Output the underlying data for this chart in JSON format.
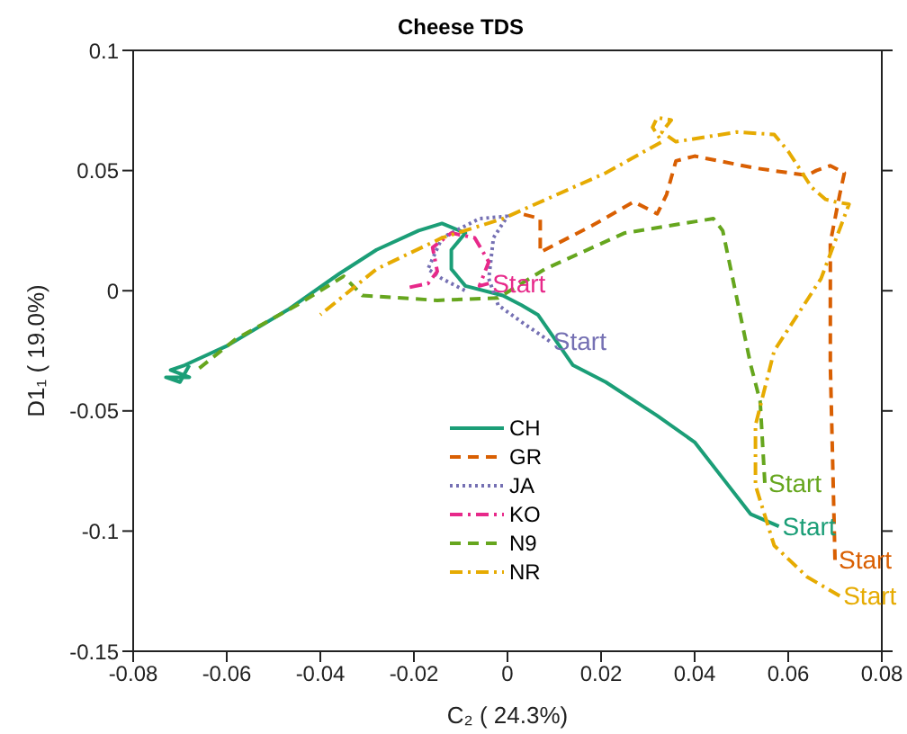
{
  "chart_data": {
    "type": "line",
    "title": "Cheese TDS",
    "xlabel": "C₂ ( 24.3%)",
    "ylabel": "D1₁ ( 19.0%)",
    "xlim": [
      -0.08,
      0.08
    ],
    "xticks": [
      -0.08,
      -0.06,
      -0.04,
      -0.02,
      0,
      0.02,
      0.04,
      0.06,
      0.08
    ],
    "ylim": [
      -0.15,
      0.1
    ],
    "yticks": [
      -0.15,
      -0.1,
      -0.05,
      0,
      0.05,
      0.1
    ],
    "grid": false,
    "legend": "bottom",
    "marker": "none",
    "series": [
      {
        "name": "CH",
        "color": "#1b9e77",
        "line_style": "solid",
        "x": [
          0.058,
          0.052,
          0.046,
          0.04,
          0.032,
          0.021,
          0.014,
          0.0065,
          0.003,
          -0.001,
          -0.009,
          -0.012,
          -0.012,
          -0.009,
          -0.014,
          -0.019,
          -0.028,
          -0.036,
          -0.047,
          -0.06,
          -0.069,
          -0.072,
          -0.068,
          -0.073,
          -0.07,
          -0.068
        ],
        "values": [
          -0.098,
          -0.093,
          -0.078,
          -0.063,
          -0.052,
          -0.038,
          -0.031,
          -0.01,
          -0.006,
          -0.002,
          0.002,
          0.009,
          0.017,
          0.024,
          0.028,
          0.025,
          0.017,
          0.007,
          -0.008,
          -0.023,
          -0.031,
          -0.033,
          -0.036,
          -0.036,
          -0.038,
          -0.031
        ]
      },
      {
        "name": "GR",
        "color": "#d95f02",
        "line_style": "dashed",
        "x": [
          0.07,
          0.069,
          0.069,
          0.071,
          0.072,
          0.069,
          0.066,
          0.064,
          0.053,
          0.04,
          0.036,
          0.034,
          0.032,
          0.027,
          0.018,
          0.007,
          0.007,
          0.003
        ],
        "values": [
          -0.112,
          -0.031,
          0.02,
          0.04,
          0.049,
          0.052,
          0.05,
          0.048,
          0.051,
          0.056,
          0.054,
          0.04,
          0.032,
          0.037,
          0.027,
          0.016,
          0.03,
          0.032
        ]
      },
      {
        "name": "JA",
        "color": "#7570b3",
        "line_style": "dotted",
        "x": [
          0.009,
          0.003,
          -0.002,
          -0.004,
          -0.003,
          0,
          -0.006,
          -0.014,
          -0.017,
          -0.014,
          -0.009
        ],
        "values": [
          -0.021,
          -0.013,
          -0.006,
          0.005,
          0.022,
          0.031,
          0.03,
          0.022,
          0.009,
          0.005,
          0
        ]
      },
      {
        "name": "KO",
        "color": "#e7298a",
        "line_style": "dashdot",
        "x": [
          -0.004,
          -0.006,
          -0.004,
          -0.007,
          -0.012,
          -0.016,
          -0.015,
          -0.017,
          -0.022
        ],
        "values": [
          0.003,
          0.002,
          0.012,
          0.022,
          0.024,
          0.018,
          0.008,
          0.003,
          0.001
        ]
      },
      {
        "name": "N9",
        "color": "#66a61e",
        "line_style": "dashed",
        "x": [
          0.055,
          0.054,
          0.052,
          0.046,
          0.044,
          0.025,
          0.008,
          -0.002,
          -0.015,
          -0.031,
          -0.035,
          -0.045,
          -0.058,
          -0.067
        ],
        "values": [
          -0.08,
          -0.046,
          -0.031,
          0.025,
          0.03,
          0.024,
          0.009,
          -0.003,
          -0.004,
          -0.002,
          0.006,
          -0.006,
          -0.02,
          -0.034
        ]
      },
      {
        "name": "NR",
        "color": "#e6ab02",
        "line_style": "dashdot",
        "x": [
          0.071,
          0.064,
          0.057,
          0.053,
          0.053,
          0.057,
          0.067,
          0.073,
          0.07,
          0.068,
          0.065,
          0.06,
          0.057,
          0.049,
          0.036,
          0.033,
          0.035,
          0.032,
          0.031,
          0.033,
          0.021,
          -0.001,
          -0.014,
          -0.028,
          -0.04
        ],
        "values": [
          -0.127,
          -0.119,
          -0.106,
          -0.081,
          -0.056,
          -0.025,
          0.005,
          0.036,
          0.037,
          0.038,
          0.043,
          0.058,
          0.065,
          0.066,
          0.062,
          0.066,
          0.071,
          0.072,
          0.068,
          0.062,
          0.049,
          0.03,
          0.022,
          0.009,
          -0.01
        ]
      }
    ],
    "annotations": [
      {
        "text": "Start",
        "x": 0.058,
        "y": -0.098
      },
      {
        "text": "Start",
        "x": 0.07,
        "y": -0.112
      },
      {
        "text": "Start",
        "x": 0.009,
        "y": -0.021
      },
      {
        "text": "Start",
        "x": -0.004,
        "y": 0.003
      },
      {
        "text": "Start",
        "x": 0.055,
        "y": -0.08
      },
      {
        "text": "Start",
        "x": 0.071,
        "y": -0.127
      }
    ]
  }
}
